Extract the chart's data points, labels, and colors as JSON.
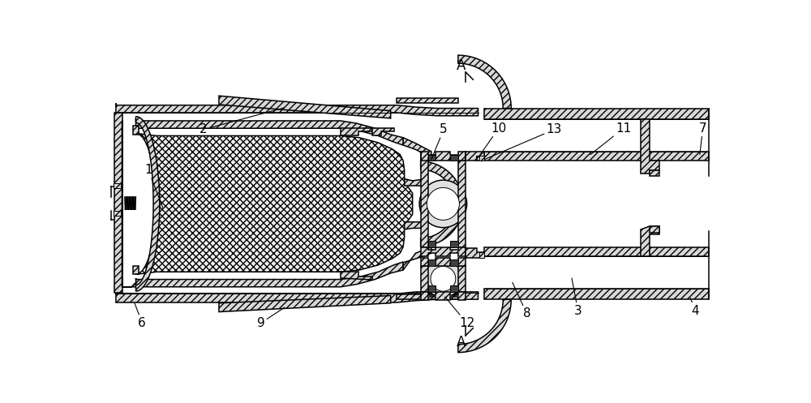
{
  "bg_color": "#ffffff",
  "figsize": [
    10.0,
    4.97
  ],
  "dpi": 100,
  "hatch_dense": "////",
  "hatch_cross": "xxxx",
  "fc_hatch": "#d8d8d8",
  "fc_fuel": "#e8e8e8",
  "fc_dark": "#404040",
  "fc_white": "#ffffff",
  "lw_main": 1.1,
  "lw_thin": 0.7,
  "lw_thick": 1.6,
  "fs_label": 11
}
